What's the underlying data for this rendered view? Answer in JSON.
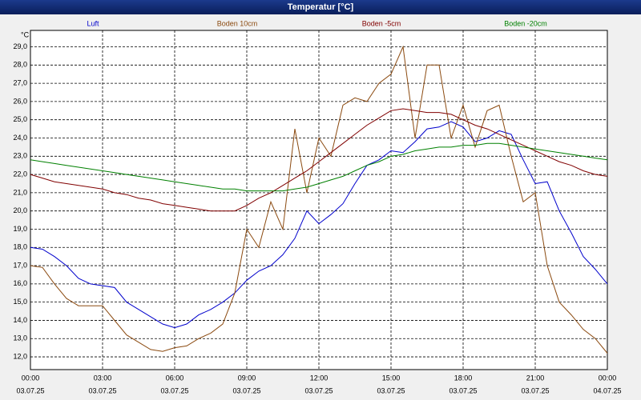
{
  "chart_data": {
    "type": "line",
    "title": "Temperatur [°C]",
    "ylabel": "°C",
    "xlim": [
      0,
      24
    ],
    "ylim": [
      11.3,
      29.9
    ],
    "grid": true,
    "legend": "top",
    "xticks": [
      {
        "value": 0,
        "label": "00:00"
      },
      {
        "value": 3,
        "label": "03:00"
      },
      {
        "value": 6,
        "label": "06:00"
      },
      {
        "value": 9,
        "label": "09:00"
      },
      {
        "value": 12,
        "label": "12:00"
      },
      {
        "value": 15,
        "label": "15:00"
      },
      {
        "value": 18,
        "label": "18:00"
      },
      {
        "value": 21,
        "label": "21:00"
      },
      {
        "value": 24,
        "label": "00:00"
      }
    ],
    "xtick_dates": [
      "03.07.25",
      "03.07.25",
      "03.07.25",
      "03.07.25",
      "03.07.25",
      "03.07.25",
      "03.07.25",
      "03.07.25",
      "04.07.25"
    ],
    "yticks": [
      {
        "value": 12,
        "label": "12,0"
      },
      {
        "value": 13,
        "label": "13,0"
      },
      {
        "value": 14,
        "label": "14,0"
      },
      {
        "value": 15,
        "label": "15,0"
      },
      {
        "value": 16,
        "label": "16,0"
      },
      {
        "value": 17,
        "label": "17,0"
      },
      {
        "value": 18,
        "label": "18,0"
      },
      {
        "value": 19,
        "label": "19,0"
      },
      {
        "value": 20,
        "label": "20,0"
      },
      {
        "value": 21,
        "label": "21,0"
      },
      {
        "value": 22,
        "label": "22,0"
      },
      {
        "value": 23,
        "label": "23,0"
      },
      {
        "value": 24,
        "label": "24,0"
      },
      {
        "value": 25,
        "label": "25,0"
      },
      {
        "value": 26,
        "label": "26,0"
      },
      {
        "value": 27,
        "label": "27,0"
      },
      {
        "value": 28,
        "label": "28,0"
      },
      {
        "value": 29,
        "label": "29,0"
      }
    ],
    "x": [
      0,
      0.5,
      1,
      1.5,
      2,
      2.5,
      3,
      3.5,
      4,
      4.5,
      5,
      5.5,
      6,
      6.5,
      7,
      7.5,
      8,
      8.5,
      9,
      9.5,
      10,
      10.5,
      11,
      11.5,
      12,
      12.5,
      13,
      13.5,
      14,
      14.5,
      15,
      15.5,
      16,
      16.5,
      17,
      17.5,
      18,
      18.5,
      19,
      19.5,
      20,
      20.5,
      21,
      21.5,
      22,
      22.5,
      23,
      23.5,
      24
    ],
    "series": [
      {
        "name": "Luft",
        "color": "#0000cc",
        "values": [
          18.0,
          17.9,
          17.5,
          17.0,
          16.3,
          16.0,
          15.9,
          15.8,
          15.0,
          14.6,
          14.2,
          13.8,
          13.6,
          13.8,
          14.3,
          14.6,
          15.0,
          15.5,
          16.2,
          16.7,
          17.0,
          17.6,
          18.5,
          20.0,
          19.3,
          19.8,
          20.4,
          21.5,
          22.5,
          22.8,
          23.3,
          23.2,
          23.8,
          24.5,
          24.6,
          24.9,
          24.6,
          23.8,
          24.0,
          24.4,
          24.2,
          22.8,
          21.5,
          21.6,
          20.0,
          18.8,
          17.5,
          16.8,
          16.0
        ]
      },
      {
        "name": "Boden 10cm",
        "color": "#8b4a10",
        "values": [
          17.0,
          16.9,
          16.0,
          15.2,
          14.8,
          14.8,
          14.8,
          14.0,
          13.2,
          12.8,
          12.4,
          12.3,
          12.5,
          12.6,
          13.0,
          13.3,
          13.8,
          15.5,
          19.0,
          18.0,
          20.5,
          19.0,
          24.5,
          21.0,
          24.0,
          23.0,
          25.8,
          26.2,
          26.0,
          27.0,
          27.5,
          29.0,
          24.0,
          28.0,
          28.0,
          24.0,
          25.8,
          23.5,
          25.5,
          25.8,
          23.0,
          20.5,
          21.0,
          17.0,
          15.0,
          14.3,
          13.5,
          13.0,
          12.2
        ]
      },
      {
        "name": "Boden -5cm",
        "color": "#800000",
        "values": [
          22.0,
          21.8,
          21.6,
          21.5,
          21.4,
          21.3,
          21.2,
          21.0,
          20.9,
          20.7,
          20.6,
          20.4,
          20.3,
          20.2,
          20.1,
          20.0,
          20.0,
          20.0,
          20.3,
          20.7,
          21.0,
          21.4,
          21.8,
          22.2,
          22.7,
          23.2,
          23.7,
          24.2,
          24.7,
          25.1,
          25.5,
          25.6,
          25.5,
          25.4,
          25.4,
          25.3,
          25.0,
          24.7,
          24.5,
          24.2,
          23.9,
          23.6,
          23.3,
          23.0,
          22.7,
          22.5,
          22.2,
          22.0,
          21.9
        ]
      },
      {
        "name": "Boden -20cm",
        "color": "#008000",
        "values": [
          22.8,
          22.7,
          22.6,
          22.5,
          22.4,
          22.3,
          22.2,
          22.1,
          22.0,
          21.9,
          21.8,
          21.7,
          21.6,
          21.5,
          21.4,
          21.3,
          21.2,
          21.2,
          21.1,
          21.1,
          21.1,
          21.1,
          21.2,
          21.3,
          21.5,
          21.7,
          21.9,
          22.2,
          22.5,
          22.7,
          23.0,
          23.1,
          23.3,
          23.4,
          23.5,
          23.5,
          23.6,
          23.6,
          23.7,
          23.7,
          23.6,
          23.5,
          23.4,
          23.3,
          23.2,
          23.1,
          23.0,
          22.9,
          22.8
        ]
      }
    ]
  }
}
